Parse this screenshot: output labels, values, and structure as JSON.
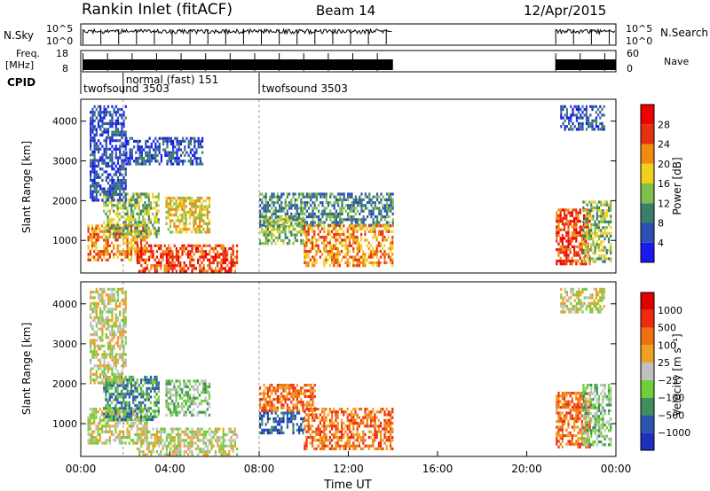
{
  "header": {
    "station": "Rankin Inlet (fitACF)",
    "beam": "Beam 14",
    "date": "12/Apr/2015"
  },
  "panels": {
    "nsky_label": "N.Sky",
    "nsky_ticks": [
      "10^5",
      "10^0"
    ],
    "nsearch_label": "N.Search",
    "nsearch_ticks": [
      "10^5",
      "10^0"
    ],
    "freq_label_1": "Freq.",
    "freq_label_2": "[MHz]",
    "freq_ticks": [
      "18",
      "8"
    ],
    "nave_label": "Nave",
    "nave_ticks": [
      "60",
      "0"
    ],
    "cpid_label": "CPID",
    "cpid_entries": [
      {
        "name": "twofsound 3503",
        "hour": 0.0
      },
      {
        "name": "normal (fast) 151",
        "hour": 1.9
      },
      {
        "name": "twofsound 3503",
        "hour": 8.0
      }
    ]
  },
  "chart_data": [
    {
      "type": "heatmap",
      "parameter": "power",
      "ylabel": "Slant Range [km]",
      "xlabel": "",
      "ylim": [
        180,
        4550
      ],
      "xlim": [
        0,
        24
      ],
      "yticks": [
        "1000",
        "2000",
        "3000",
        "4000"
      ],
      "ytick_values": [
        1000,
        2000,
        3000,
        4000
      ],
      "colorbar": {
        "label": "Power [dB]",
        "tick_labels": [
          "4",
          "8",
          "12",
          "16",
          "20",
          "24",
          "28"
        ],
        "tick_values": [
          4,
          8,
          12,
          16,
          20,
          24,
          28
        ],
        "colors": [
          "#1a1af0",
          "#2c4fb4",
          "#3b7f6a",
          "#7fbf4a",
          "#f0d020",
          "#f08a10",
          "#e83010",
          "#f00000"
        ]
      },
      "regions": [
        {
          "t0": 0.3,
          "t1": 3.0,
          "r0": 500,
          "r1": 1400,
          "level": 5
        },
        {
          "t0": 2.5,
          "t1": 7.0,
          "r0": 200,
          "r1": 900,
          "level": 6
        },
        {
          "t0": 1.0,
          "t1": 3.5,
          "r0": 1100,
          "r1": 2200,
          "level": 3
        },
        {
          "t0": 3.8,
          "t1": 5.8,
          "r0": 1200,
          "r1": 2100,
          "level": 4
        },
        {
          "t0": 0.4,
          "t1": 2.0,
          "r0": 2000,
          "r1": 4400,
          "level": 1
        },
        {
          "t0": 2.0,
          "t1": 5.5,
          "r0": 2900,
          "r1": 3600,
          "level": 1
        },
        {
          "t0": 8.0,
          "t1": 14.0,
          "r0": 1400,
          "r1": 2200,
          "level": 2
        },
        {
          "t0": 10.0,
          "t1": 14.0,
          "r0": 400,
          "r1": 1400,
          "level": 5
        },
        {
          "t0": 8.0,
          "t1": 10.0,
          "r0": 900,
          "r1": 1600,
          "level": 3
        },
        {
          "t0": 21.3,
          "t1": 22.8,
          "r0": 400,
          "r1": 1800,
          "level": 6
        },
        {
          "t0": 22.5,
          "t1": 23.8,
          "r0": 500,
          "r1": 2000,
          "level": 3
        },
        {
          "t0": 21.5,
          "t1": 23.5,
          "r0": 3800,
          "r1": 4400,
          "level": 1
        }
      ]
    },
    {
      "type": "heatmap",
      "parameter": "velocity",
      "ylabel": "Slant Range [km]",
      "xlabel": "Time UT",
      "ylim": [
        180,
        4550
      ],
      "xlim": [
        0,
        24
      ],
      "yticks": [
        "1000",
        "2000",
        "3000",
        "4000"
      ],
      "ytick_values": [
        1000,
        2000,
        3000,
        4000
      ],
      "xticks": [
        "00:00",
        "04:00",
        "08:00",
        "12:00",
        "16:00",
        "20:00",
        "00:00"
      ],
      "xtick_values": [
        0,
        4,
        8,
        12,
        16,
        20,
        24
      ],
      "colorbar": {
        "label": "Velocity [m s⁻¹]",
        "tick_labels": [
          "1000",
          "500",
          "100",
          "25",
          "−25",
          "−100",
          "−500",
          "−1000"
        ],
        "tick_values": [
          1000,
          500,
          100,
          25,
          -25,
          -100,
          -500,
          -1000
        ],
        "colors": [
          "#1c2fbf",
          "#2a56b0",
          "#3e8f5a",
          "#6fcf3a",
          "#c0c0c0",
          "#f0a020",
          "#f07010",
          "#f02a10",
          "#e00000"
        ]
      },
      "regions": [
        {
          "t0": 0.3,
          "t1": 3.0,
          "r0": 500,
          "r1": 1400,
          "level": 4
        },
        {
          "t0": 2.5,
          "t1": 7.0,
          "r0": 200,
          "r1": 900,
          "level": 4
        },
        {
          "t0": 1.0,
          "t1": 3.5,
          "r0": 1100,
          "r1": 2200,
          "level": 2
        },
        {
          "t0": 3.8,
          "t1": 5.8,
          "r0": 1200,
          "r1": 2100,
          "level": 3
        },
        {
          "t0": 0.4,
          "t1": 2.0,
          "r0": 2000,
          "r1": 4400,
          "level": 4
        },
        {
          "t0": 8.0,
          "t1": 10.5,
          "r0": 1300,
          "r1": 2000,
          "level": 6
        },
        {
          "t0": 10.0,
          "t1": 14.0,
          "r0": 400,
          "r1": 1400,
          "level": 6
        },
        {
          "t0": 8.0,
          "t1": 10.0,
          "r0": 800,
          "r1": 1300,
          "level": 1
        },
        {
          "t0": 21.3,
          "t1": 22.8,
          "r0": 400,
          "r1": 1800,
          "level": 6
        },
        {
          "t0": 22.5,
          "t1": 23.8,
          "r0": 500,
          "r1": 2000,
          "level": 3
        },
        {
          "t0": 21.5,
          "t1": 23.5,
          "r0": 3800,
          "r1": 4400,
          "level": 4
        }
      ]
    }
  ],
  "footer": {
    "time_label": "Time UT"
  }
}
